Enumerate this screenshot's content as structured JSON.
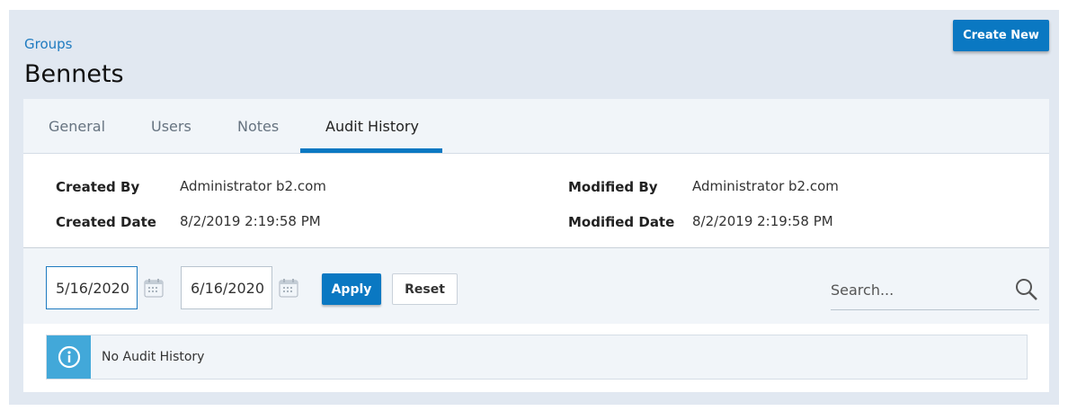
{
  "breadcrumb": {
    "label": "Groups"
  },
  "header": {
    "title": "Bennets",
    "create_label": "Create New"
  },
  "tabs": [
    {
      "label": "General"
    },
    {
      "label": "Users"
    },
    {
      "label": "Notes"
    },
    {
      "label": "Audit History",
      "active": true
    }
  ],
  "details": {
    "created_by_label": "Created By",
    "created_by": "Administrator b2.com",
    "created_date_label": "Created Date",
    "created_date": "8/2/2019 2:19:58 PM",
    "modified_by_label": "Modified By",
    "modified_by": "Administrator b2.com",
    "modified_date_label": "Modified Date",
    "modified_date": "8/2/2019 2:19:58 PM"
  },
  "filter": {
    "start_date": "5/16/2020",
    "end_date": "6/16/2020",
    "apply_label": "Apply",
    "reset_label": "Reset",
    "search_placeholder": "Search..."
  },
  "message": {
    "icon": "info-icon",
    "text": "No Audit History"
  },
  "colors": {
    "accent": "#0a78c2",
    "info": "#42a8d9",
    "background": "#e1e8f1"
  }
}
